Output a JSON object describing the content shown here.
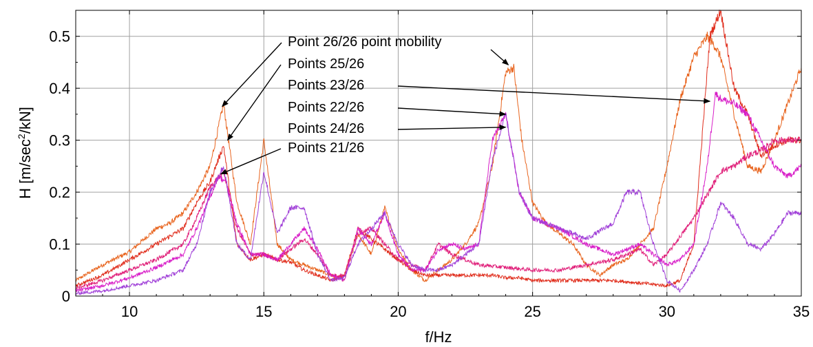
{
  "chart_data": {
    "type": "line",
    "title": "",
    "xlabel": "f/Hz",
    "ylabel_main": "H [m/sec",
    "ylabel_sup": "2",
    "ylabel_tail": "/kN]",
    "xlim": [
      8,
      35
    ],
    "ylim": [
      0,
      0.55
    ],
    "x_ticks": [
      10,
      15,
      20,
      25,
      30,
      35
    ],
    "x_tick_labels": [
      "10",
      "15",
      "20",
      "25",
      "30",
      "35"
    ],
    "y_ticks": [
      0,
      0.1,
      0.2,
      0.3,
      0.4,
      0.5
    ],
    "y_tick_labels": [
      "0",
      "0.1",
      "0.2",
      "0.3",
      "0.4",
      "0.5"
    ],
    "grid": true,
    "series": [
      {
        "key": "p26",
        "color": "#e8641e",
        "x": [
          8,
          9,
          10,
          11,
          11.5,
          12,
          12.5,
          13,
          13.5,
          14,
          14.5,
          15,
          15.5,
          16,
          16.5,
          17,
          17.5,
          18,
          18.5,
          19,
          19.5,
          20,
          20.5,
          21,
          21.5,
          22,
          22.5,
          23,
          23.5,
          24,
          24.3,
          24.6,
          25,
          25.5,
          26,
          26.5,
          27,
          27.5,
          28,
          28.5,
          29,
          29.5,
          30,
          30.5,
          31,
          31.5,
          31.8,
          32,
          32.5,
          33,
          33.5,
          34,
          34.5,
          35
        ],
        "y": [
          0.03,
          0.06,
          0.085,
          0.13,
          0.14,
          0.16,
          0.2,
          0.25,
          0.37,
          0.18,
          0.1,
          0.3,
          0.1,
          0.07,
          0.06,
          0.05,
          0.04,
          0.03,
          0.12,
          0.08,
          0.17,
          0.09,
          0.05,
          0.03,
          0.05,
          0.07,
          0.1,
          0.14,
          0.25,
          0.43,
          0.44,
          0.3,
          0.18,
          0.14,
          0.12,
          0.1,
          0.06,
          0.04,
          0.06,
          0.07,
          0.1,
          0.13,
          0.25,
          0.38,
          0.46,
          0.5,
          0.48,
          0.46,
          0.35,
          0.25,
          0.24,
          0.3,
          0.37,
          0.44
        ]
      },
      {
        "key": "p25",
        "color": "#e02d1c",
        "x": [
          8,
          9,
          10,
          11,
          12,
          12.5,
          13,
          13.5,
          14,
          14.5,
          15,
          15.5,
          16,
          16.5,
          17,
          17.5,
          18,
          18.5,
          19,
          19.5,
          20,
          20.5,
          21,
          22,
          23,
          23.5,
          24,
          24.5,
          25,
          26,
          27,
          28,
          29,
          30,
          30.5,
          31,
          31.3,
          31.6,
          32,
          32.5,
          33,
          33.5,
          34,
          34.5,
          35
        ],
        "y": [
          0.02,
          0.04,
          0.07,
          0.1,
          0.13,
          0.18,
          0.22,
          0.29,
          0.1,
          0.07,
          0.08,
          0.07,
          0.065,
          0.05,
          0.04,
          0.03,
          0.04,
          0.13,
          0.11,
          0.09,
          0.07,
          0.05,
          0.04,
          0.04,
          0.04,
          0.04,
          0.035,
          0.035,
          0.03,
          0.03,
          0.03,
          0.03,
          0.025,
          0.02,
          0.03,
          0.1,
          0.3,
          0.5,
          0.55,
          0.4,
          0.35,
          0.27,
          0.29,
          0.3,
          0.3
        ]
      },
      {
        "key": "p23",
        "color": "#e0207a",
        "x": [
          8,
          9,
          10,
          11,
          12,
          12.5,
          13,
          13.5,
          14,
          14.5,
          15,
          15.5,
          16,
          16.5,
          17,
          17.5,
          18,
          18.5,
          19,
          19.5,
          20,
          20.5,
          21,
          21.5,
          22,
          22.5,
          23,
          24,
          25,
          26,
          27,
          28,
          29,
          29.5,
          30,
          31,
          32,
          32.5,
          33,
          33.5,
          34,
          34.5,
          35
        ],
        "y": [
          0.015,
          0.03,
          0.05,
          0.07,
          0.1,
          0.15,
          0.21,
          0.24,
          0.13,
          0.08,
          0.08,
          0.07,
          0.09,
          0.11,
          0.08,
          0.04,
          0.04,
          0.12,
          0.13,
          0.1,
          0.07,
          0.06,
          0.05,
          0.1,
          0.08,
          0.07,
          0.06,
          0.055,
          0.05,
          0.05,
          0.06,
          0.07,
          0.09,
          0.06,
          0.08,
          0.15,
          0.24,
          0.25,
          0.27,
          0.28,
          0.3,
          0.3,
          0.3
        ]
      },
      {
        "key": "p22",
        "color": "#d81ec8",
        "x": [
          8,
          9,
          10,
          11,
          12,
          12.5,
          13,
          13.3,
          13.6,
          14,
          14.5,
          15,
          15.5,
          16,
          16.5,
          17,
          17.5,
          18,
          18.5,
          19,
          19.5,
          20,
          20.5,
          21,
          21.5,
          22,
          22.5,
          23,
          23.5,
          24,
          24.5,
          25,
          26,
          27,
          28,
          28.5,
          29,
          29.5,
          30,
          30.5,
          31,
          31.5,
          31.8,
          32,
          32.5,
          33,
          33.5,
          34,
          34.5,
          35
        ],
        "y": [
          0.01,
          0.02,
          0.035,
          0.055,
          0.08,
          0.13,
          0.19,
          0.23,
          0.22,
          0.14,
          0.08,
          0.08,
          0.07,
          0.1,
          0.13,
          0.09,
          0.04,
          0.03,
          0.13,
          0.1,
          0.16,
          0.08,
          0.05,
          0.05,
          0.09,
          0.1,
          0.09,
          0.1,
          0.3,
          0.35,
          0.2,
          0.15,
          0.13,
          0.1,
          0.08,
          0.09,
          0.1,
          0.08,
          0.06,
          0.07,
          0.1,
          0.25,
          0.39,
          0.38,
          0.37,
          0.35,
          0.3,
          0.25,
          0.23,
          0.25
        ]
      },
      {
        "key": "p24",
        "color": "#a040d8",
        "x": [
          8,
          9,
          10,
          11,
          12,
          12.5,
          13,
          13.5,
          14,
          14.5,
          15,
          15.5,
          16,
          16.5,
          17,
          17.5,
          18,
          18.5,
          19,
          19.5,
          20,
          20.5,
          21,
          21.5,
          22,
          22.5,
          23,
          23.5,
          24,
          24.5,
          25,
          26,
          27,
          28,
          28.5,
          29,
          29.5,
          30,
          30.5,
          31,
          31.5,
          32,
          32.5,
          33,
          33.5,
          34,
          34.5,
          35
        ],
        "y": [
          0.005,
          0.01,
          0.02,
          0.03,
          0.05,
          0.1,
          0.2,
          0.25,
          0.1,
          0.07,
          0.24,
          0.12,
          0.17,
          0.17,
          0.08,
          0.03,
          0.035,
          0.1,
          0.13,
          0.16,
          0.1,
          0.06,
          0.05,
          0.05,
          0.06,
          0.08,
          0.1,
          0.26,
          0.35,
          0.2,
          0.15,
          0.13,
          0.11,
          0.14,
          0.2,
          0.2,
          0.1,
          0.03,
          0.01,
          0.05,
          0.1,
          0.18,
          0.15,
          0.1,
          0.09,
          0.12,
          0.16,
          0.16
        ]
      }
    ],
    "annotations": [
      {
        "text": "Point 26/26 point mobility",
        "x": 24.1,
        "y": 0.445
      },
      {
        "text": "Points 25/26",
        "x": 13.65,
        "y": 0.3
      },
      {
        "text": "Points 23/26",
        "x": 31.6,
        "y": 0.375
      },
      {
        "text": "Points 22/26",
        "x": 24,
        "y": 0.35
      },
      {
        "text": "Points 24/26",
        "x": 24,
        "y": 0.325
      },
      {
        "text": "Points 21/26",
        "x": 13.4,
        "y": 0.235
      }
    ],
    "annotation_extra": {
      "x": 13.45,
      "y": 0.365
    }
  }
}
